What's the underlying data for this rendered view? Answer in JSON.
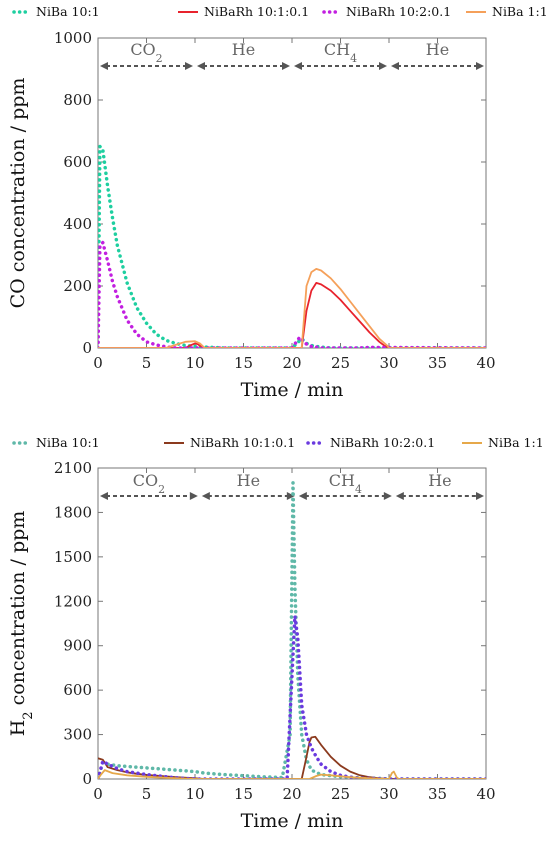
{
  "chart_data": [
    {
      "type": "line",
      "title": "",
      "xlabel": "Time / min",
      "ylabel": "CO concentration / ppm",
      "xlim": [
        0,
        40
      ],
      "ylim": [
        0,
        1000
      ],
      "xticks": [
        0,
        5,
        10,
        15,
        20,
        25,
        30,
        35,
        40
      ],
      "yticks": [
        0,
        200,
        400,
        600,
        800,
        1000
      ],
      "grid": false,
      "legend_position": "top",
      "regions": [
        {
          "label": "CO",
          "sub": "2",
          "x_start": 0,
          "x_end": 10
        },
        {
          "label": "He",
          "sub": "",
          "x_start": 10,
          "x_end": 20
        },
        {
          "label": "CH",
          "sub": "4",
          "x_start": 20,
          "x_end": 30
        },
        {
          "label": "He",
          "sub": "",
          "x_start": 30,
          "x_end": 40
        }
      ],
      "series": [
        {
          "name": "NiBa 10:1",
          "color": "#1ecfa0",
          "style": "dotted",
          "x": [
            0,
            0.2,
            0.5,
            1,
            1.5,
            2,
            3,
            4,
            5,
            6,
            7,
            8,
            9,
            10,
            11,
            12,
            13,
            20,
            21,
            21.5,
            22,
            22.5,
            23,
            24,
            40
          ],
          "y": [
            0,
            650,
            640,
            520,
            420,
            330,
            210,
            130,
            80,
            45,
            25,
            15,
            8,
            5,
            3,
            2,
            0,
            0,
            30,
            15,
            8,
            5,
            3,
            0,
            0
          ]
        },
        {
          "name": "NiBaRh 10:1:0.1",
          "color": "#e8232d",
          "style": "solid",
          "x": [
            0,
            9,
            9.5,
            10,
            10.3,
            10.6,
            11,
            20,
            21,
            21.5,
            22,
            22.5,
            23,
            24,
            25,
            26,
            27,
            28,
            29,
            29.5,
            30,
            40
          ],
          "y": [
            0,
            0,
            8,
            15,
            12,
            5,
            0,
            0,
            0,
            120,
            185,
            210,
            205,
            185,
            155,
            120,
            85,
            50,
            20,
            8,
            0,
            0
          ]
        },
        {
          "name": "NiBaRh 10:2:0.1",
          "color": "#c21fe0",
          "style": "dotted",
          "x": [
            0,
            0.2,
            0.5,
            1,
            1.5,
            2,
            3,
            4,
            5,
            6,
            7,
            8,
            20,
            20.8,
            21.2,
            21.6,
            22,
            22.5,
            23,
            24,
            27,
            28,
            40
          ],
          "y": [
            0,
            330,
            340,
            280,
            215,
            165,
            90,
            45,
            20,
            10,
            4,
            0,
            0,
            35,
            20,
            10,
            5,
            3,
            0,
            0,
            0,
            2,
            0
          ]
        },
        {
          "name": "NiBa 1:1",
          "color": "#f5a05a",
          "style": "solid",
          "x": [
            0,
            7,
            8,
            9,
            10,
            10.5,
            11,
            20,
            21,
            21.5,
            22,
            22.5,
            23,
            24,
            25,
            26,
            27,
            28,
            29,
            29.8,
            30,
            40
          ],
          "y": [
            0,
            0,
            10,
            20,
            22,
            15,
            0,
            0,
            0,
            200,
            245,
            255,
            250,
            225,
            190,
            150,
            110,
            70,
            30,
            8,
            0,
            0
          ]
        }
      ]
    },
    {
      "type": "line",
      "title": "",
      "xlabel": "Time / min",
      "ylabel": "H",
      "ylabel_sub": "2",
      "ylabel_rest": " concentration / ppm",
      "xlim": [
        0,
        40
      ],
      "ylim": [
        0,
        2100
      ],
      "xticks": [
        0,
        5,
        10,
        15,
        20,
        25,
        30,
        35,
        40
      ],
      "yticks": [
        0,
        300,
        600,
        900,
        1200,
        1500,
        1800,
        2100
      ],
      "grid": false,
      "legend_position": "top",
      "regions": [
        {
          "label": "CO",
          "sub": "2",
          "x_start": 0,
          "x_end": 10.5
        },
        {
          "label": "He",
          "sub": "",
          "x_start": 10.5,
          "x_end": 20.5
        },
        {
          "label": "CH",
          "sub": "4",
          "x_start": 20.5,
          "x_end": 30.5
        },
        {
          "label": "He",
          "sub": "",
          "x_start": 30.5,
          "x_end": 40
        }
      ],
      "series": [
        {
          "name": "NiBa 10:1",
          "color": "#5fb8a8",
          "style": "dotted",
          "x": [
            0,
            0.5,
            1,
            2,
            4,
            6,
            8,
            10,
            11,
            13,
            15,
            17,
            19,
            19.8,
            20.1,
            20.3,
            20.6,
            21,
            21.5,
            22,
            23,
            25,
            27,
            29,
            30,
            40
          ],
          "y": [
            0,
            110,
            100,
            90,
            80,
            70,
            60,
            50,
            40,
            30,
            22,
            15,
            10,
            300,
            2000,
            1300,
            700,
            300,
            130,
            60,
            30,
            15,
            8,
            4,
            0,
            0
          ]
        },
        {
          "name": "NiBaRh 10:1:0.1",
          "color": "#8b3a1e",
          "style": "solid",
          "x": [
            0,
            0.5,
            1,
            2,
            3,
            4,
            5,
            6,
            8,
            10,
            11,
            21,
            21.5,
            21.8,
            22,
            22.4,
            23,
            24,
            25,
            26,
            27,
            28,
            29,
            30,
            40
          ],
          "y": [
            140,
            130,
            80,
            60,
            45,
            35,
            28,
            22,
            12,
            5,
            0,
            0,
            150,
            250,
            280,
            285,
            230,
            150,
            90,
            50,
            25,
            12,
            5,
            0,
            0
          ]
        },
        {
          "name": "NiBaRh 10:2:0.1",
          "color": "#6a3adf",
          "style": "dotted",
          "x": [
            0,
            0.5,
            1,
            2,
            3,
            4,
            5,
            6,
            7,
            8,
            9,
            10,
            19.5,
            20,
            20.3,
            20.6,
            21,
            21.5,
            22,
            22.5,
            23,
            24,
            25,
            26,
            27,
            29,
            30,
            40
          ],
          "y": [
            0,
            120,
            100,
            70,
            50,
            40,
            30,
            22,
            15,
            8,
            4,
            0,
            0,
            700,
            1100,
            950,
            500,
            300,
            210,
            150,
            100,
            50,
            25,
            12,
            6,
            2,
            0,
            0
          ]
        },
        {
          "name": "NiBa 1:1",
          "color": "#e6a84a",
          "style": "solid",
          "x": [
            0,
            0.3,
            0.7,
            1.5,
            3,
            5,
            7,
            9,
            10,
            11,
            21.8,
            22.5,
            23,
            24,
            25,
            26,
            27,
            28,
            29,
            30,
            30.3,
            30.5,
            30.8,
            31,
            40
          ],
          "y": [
            0,
            30,
            60,
            40,
            25,
            15,
            8,
            3,
            0,
            0,
            0,
            20,
            30,
            25,
            18,
            12,
            8,
            5,
            3,
            0,
            40,
            50,
            10,
            0,
            0
          ]
        }
      ]
    }
  ]
}
